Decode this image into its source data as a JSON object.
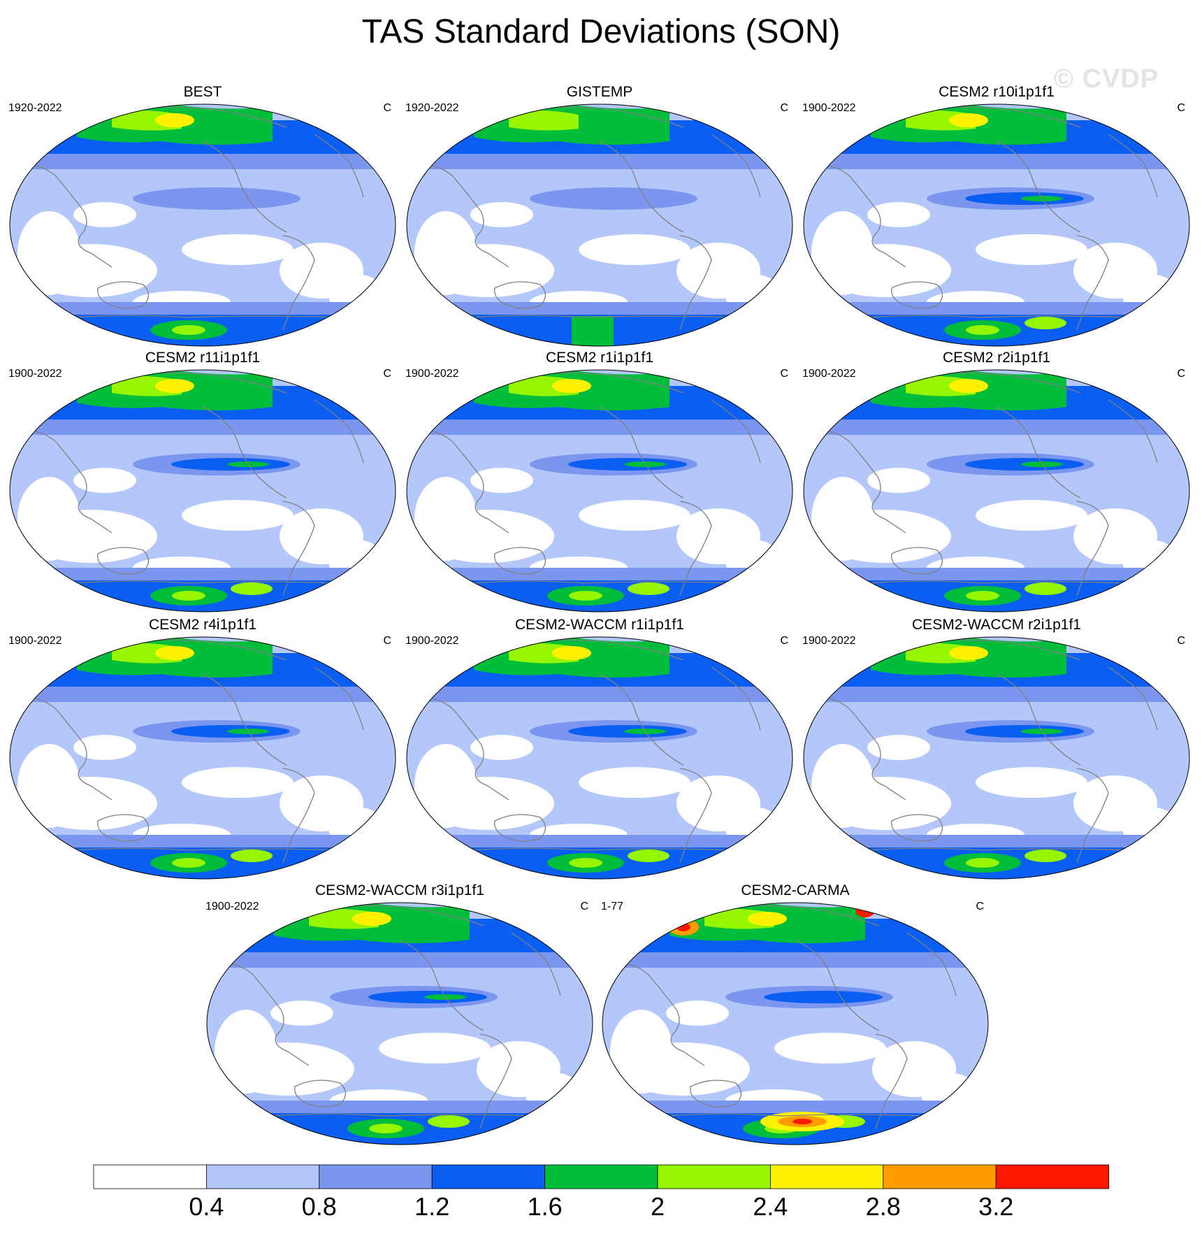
{
  "figure": {
    "title": "TAS Standard Deviations (SON)",
    "watermark": "© CVDP"
  },
  "chart_data": {
    "type": "heatmap",
    "projection": "Robinson (Pacific-centered)",
    "units": "C",
    "colorbar": {
      "levels": [
        0.4,
        0.8,
        1.2,
        1.6,
        2,
        2.4,
        2.8,
        3.2
      ],
      "tick_labels": [
        "0.4",
        "0.8",
        "1.2",
        "1.6",
        "2",
        "2.4",
        "2.8",
        "3.2"
      ],
      "colors": [
        "#ffffff",
        "#b4c7fa",
        "#7b96ef",
        "#0a5ef2",
        "#00be3c",
        "#96f500",
        "#fff200",
        "#ff9c00",
        "#ff1800"
      ]
    },
    "panels": [
      {
        "title": "BEST",
        "period": "1920-2022",
        "units": "C"
      },
      {
        "title": "GISTEMP",
        "period": "1920-2022",
        "units": "C"
      },
      {
        "title": "CESM2 r10i1p1f1",
        "period": "1900-2022",
        "units": "C"
      },
      {
        "title": "CESM2 r11i1p1f1",
        "period": "1900-2022",
        "units": "C"
      },
      {
        "title": "CESM2 r1i1p1f1",
        "period": "1900-2022",
        "units": "C"
      },
      {
        "title": "CESM2 r2i1p1f1",
        "period": "1900-2022",
        "units": "C"
      },
      {
        "title": "CESM2 r4i1p1f1",
        "period": "1900-2022",
        "units": "C"
      },
      {
        "title": "CESM2-WACCM r1i1p1f1",
        "period": "1900-2022",
        "units": "C"
      },
      {
        "title": "CESM2-WACCM r2i1p1f1",
        "period": "1900-2022",
        "units": "C"
      },
      {
        "title": "CESM2-WACCM r3i1p1f1",
        "period": "1900-2022",
        "units": "C"
      },
      {
        "title": "CESM2-CARMA",
        "period": "1-77",
        "units": "C"
      }
    ]
  }
}
